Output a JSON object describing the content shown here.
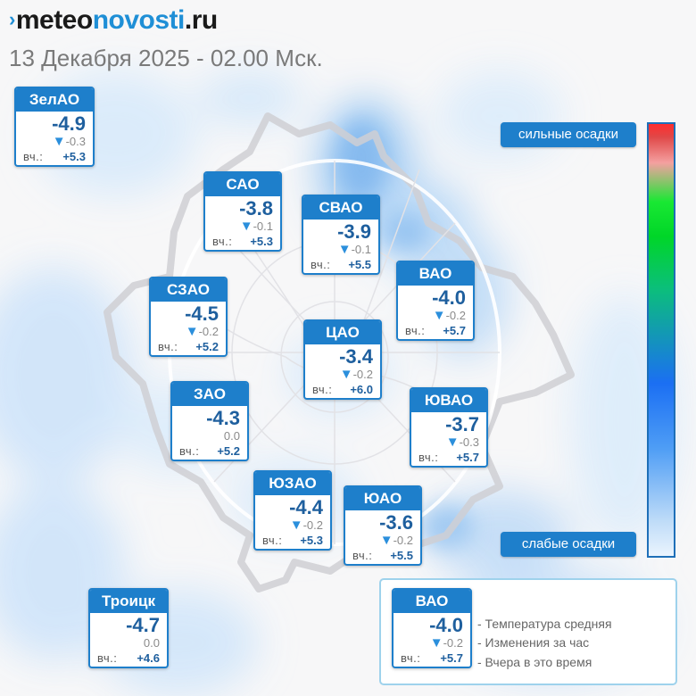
{
  "header": {
    "logo_mark": "›",
    "logo_prefix": "meteo",
    "logo_accent": "novosti",
    "logo_suffix": ".ru",
    "subtitle": "13 Декабря 2025 - 02.00 Мск."
  },
  "yesterday_label": "вч.:",
  "change_arrow": "▼",
  "districts": [
    {
      "id": "zelao",
      "name": "ЗелАО",
      "temp": "-4.9",
      "change": "-0.3",
      "falling": true,
      "yesterday": "+5.3"
    },
    {
      "id": "sao",
      "name": "САО",
      "temp": "-3.8",
      "change": "-0.1",
      "falling": true,
      "yesterday": "+5.3"
    },
    {
      "id": "svao",
      "name": "СВАО",
      "temp": "-3.9",
      "change": "-0.1",
      "falling": true,
      "yesterday": "+5.5"
    },
    {
      "id": "vao",
      "name": "ВАО",
      "temp": "-4.0",
      "change": "-0.2",
      "falling": true,
      "yesterday": "+5.7"
    },
    {
      "id": "szao",
      "name": "СЗАО",
      "temp": "-4.5",
      "change": "-0.2",
      "falling": true,
      "yesterday": "+5.2"
    },
    {
      "id": "cao",
      "name": "ЦАО",
      "temp": "-3.4",
      "change": "-0.2",
      "falling": true,
      "yesterday": "+6.0"
    },
    {
      "id": "zao",
      "name": "ЗАО",
      "temp": "-4.3",
      "change": "0.0",
      "falling": false,
      "yesterday": "+5.2"
    },
    {
      "id": "yuvao",
      "name": "ЮВАО",
      "temp": "-3.7",
      "change": "-0.3",
      "falling": true,
      "yesterday": "+5.7"
    },
    {
      "id": "yuzao",
      "name": "ЮЗАО",
      "temp": "-4.4",
      "change": "-0.2",
      "falling": true,
      "yesterday": "+5.3"
    },
    {
      "id": "yuao",
      "name": "ЮАО",
      "temp": "-3.6",
      "change": "-0.2",
      "falling": true,
      "yesterday": "+5.5"
    },
    {
      "id": "troitsk",
      "name": "Троицк",
      "temp": "-4.7",
      "change": "0.0",
      "falling": false,
      "yesterday": "+4.6"
    }
  ],
  "precip_scale": {
    "strong_label": "сильные осадки",
    "weak_label": "слабые осадки"
  },
  "legend": {
    "example": {
      "name": "ВАО",
      "temp": "-4.0",
      "change": "-0.2",
      "falling": true,
      "yesterday": "+5.7"
    },
    "desc_temp": "- Температура средняя",
    "desc_change": "- Изменения за час",
    "desc_yesterday": "- Вчера в это время"
  },
  "colors": {
    "accent": "#1e7fcb",
    "temp_text": "#1e5f9e",
    "precip_light": "#cfe6fb",
    "precip_mid": "#8ec2f3",
    "precip_strong": "#ff2d2d"
  }
}
